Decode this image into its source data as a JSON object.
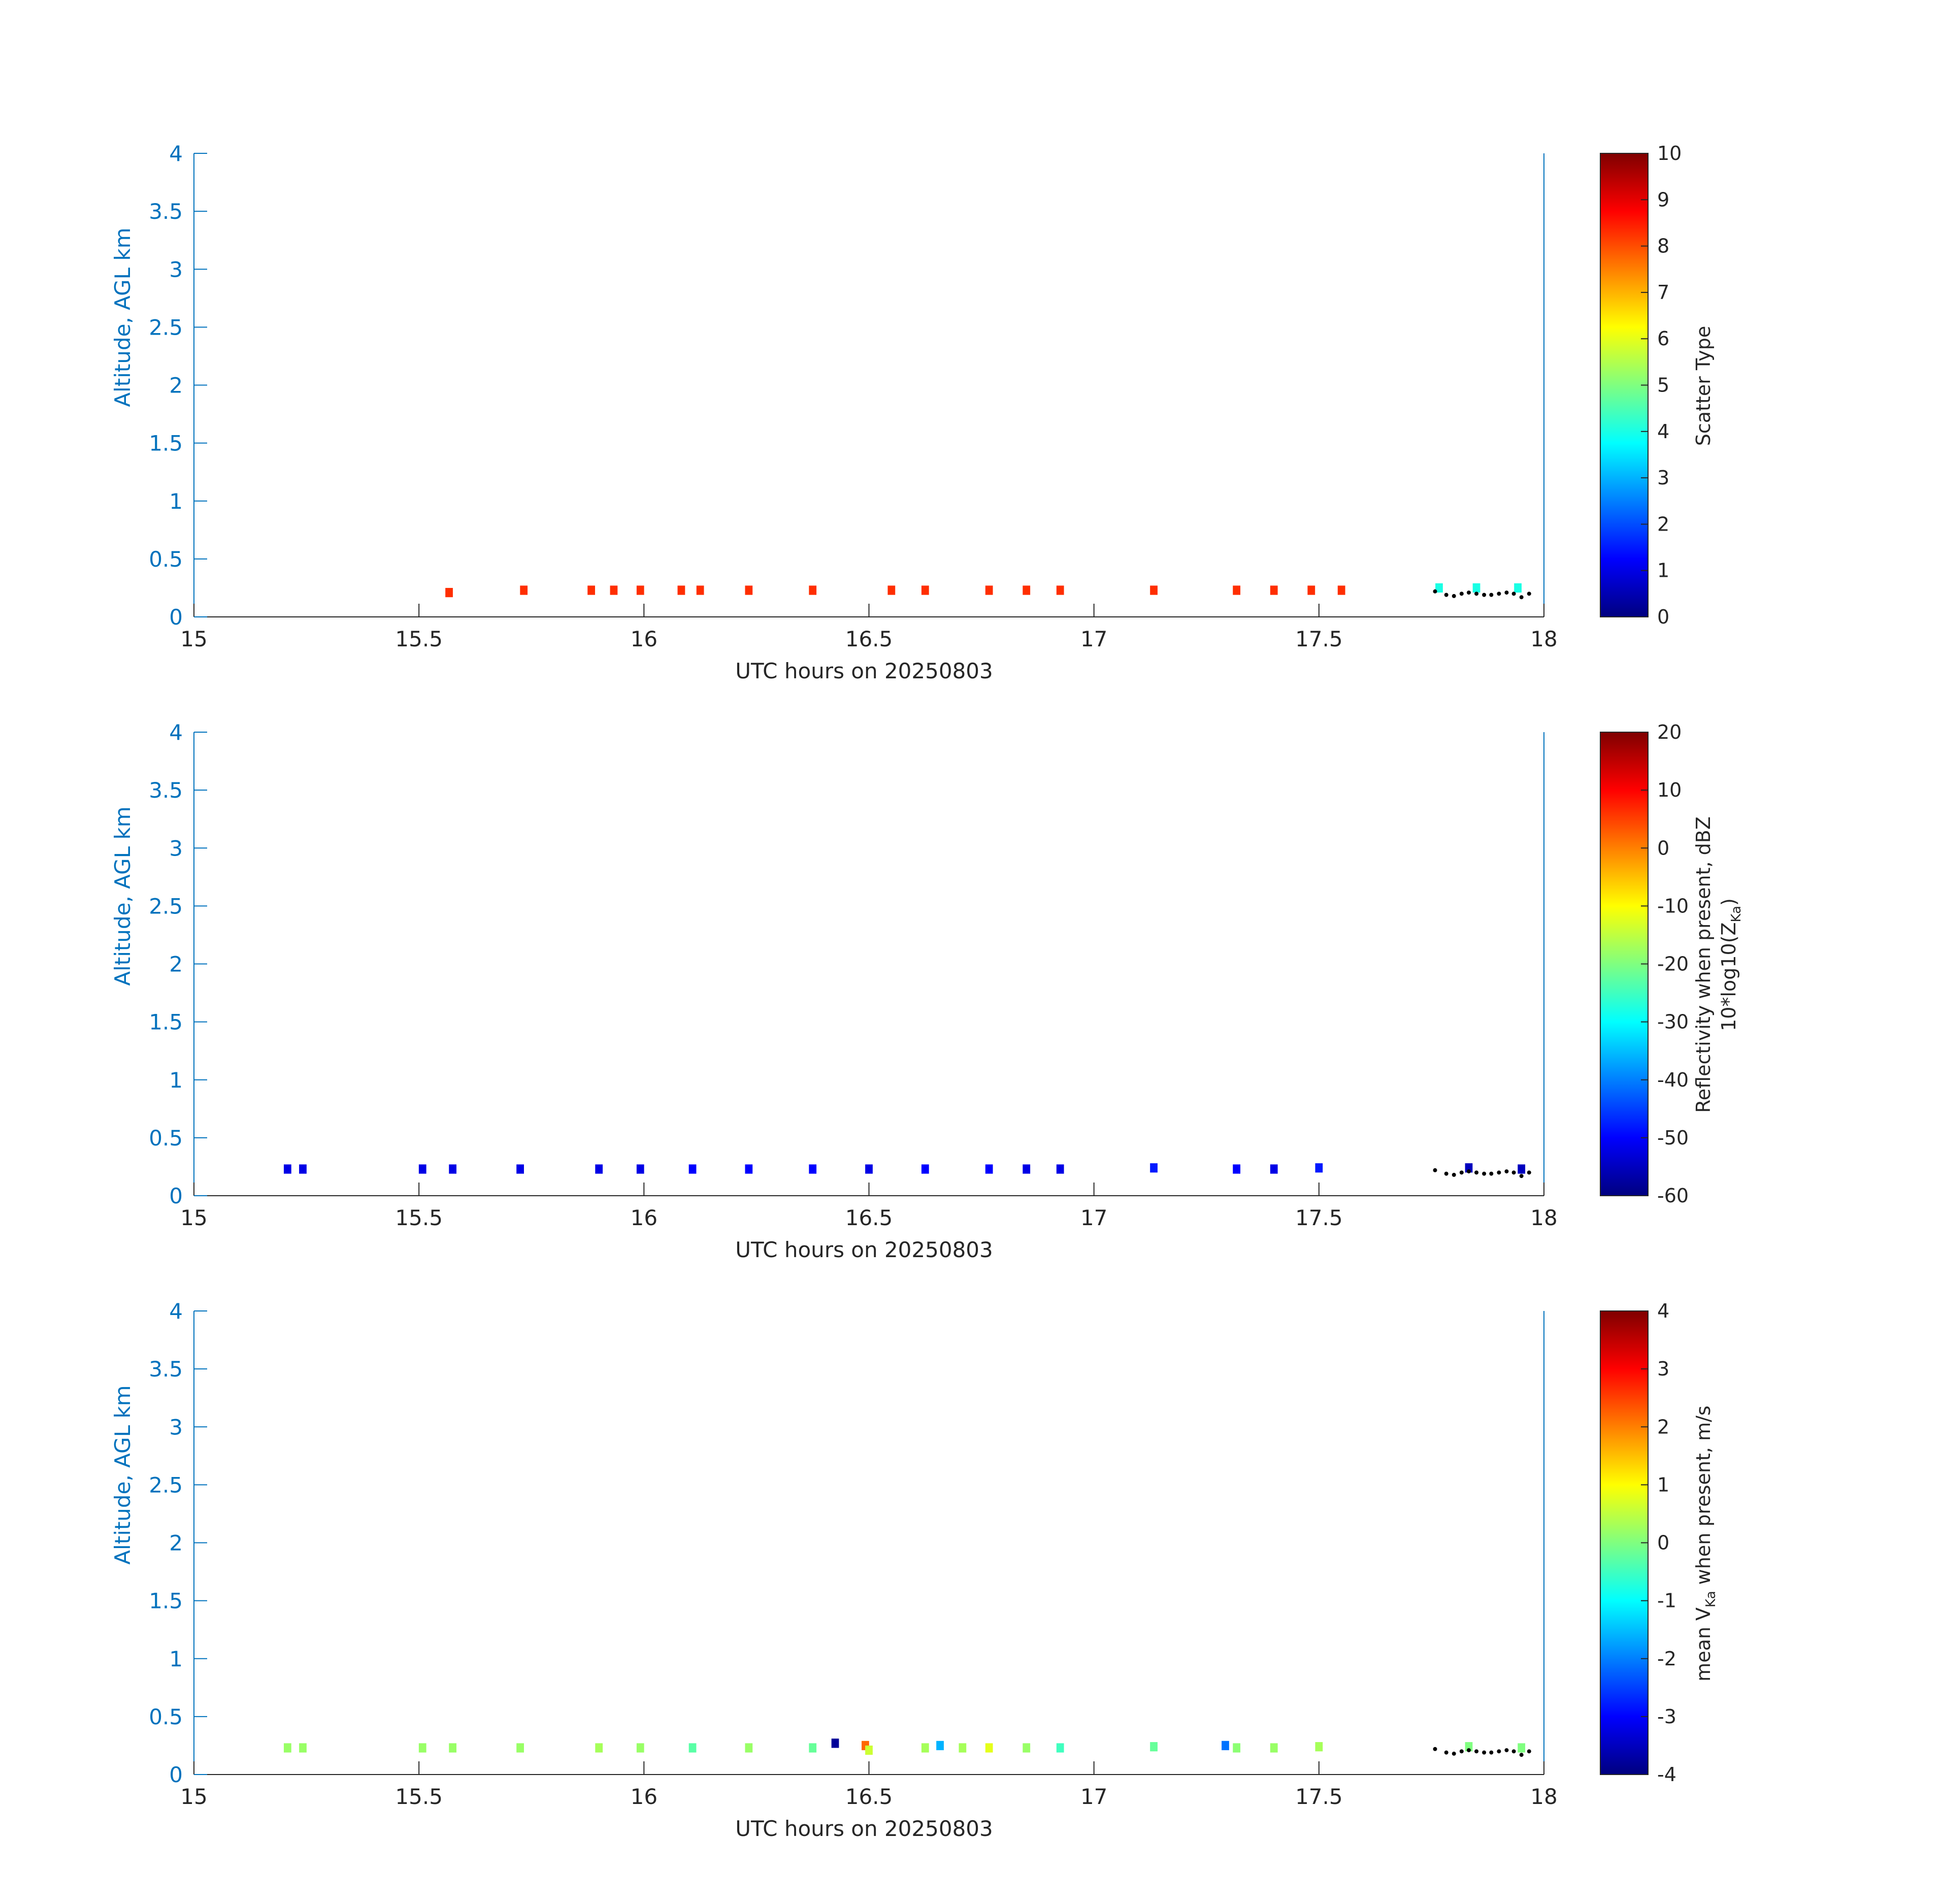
{
  "figure": {
    "xlabel": "UTC hours on 20250803",
    "ylabel": "Altitude, AGL km",
    "xlim": [
      15,
      18
    ],
    "ylim": [
      0,
      4
    ],
    "xticks": [
      "15",
      "15.5",
      "16",
      "16.5",
      "17",
      "17.5",
      "18"
    ],
    "yticks": [
      "0",
      "0.5",
      "1",
      "1.5",
      "2",
      "2.5",
      "3",
      "3.5",
      "4"
    ],
    "colors": {
      "ylabel": "#0072bd",
      "axis": "#262626",
      "marker": "#000000"
    },
    "colormap": "jet"
  },
  "chart_data": [
    {
      "type": "heatmap",
      "xlabel": "UTC hours on 20250803",
      "ylabel": "Altitude, AGL km",
      "xlim": [
        15,
        18
      ],
      "ylim": [
        0,
        4
      ],
      "colorbar": {
        "label": "Scatter Type",
        "range": [
          0,
          10
        ],
        "ticks": [
          "0",
          "1",
          "2",
          "3",
          "4",
          "5",
          "6",
          "7",
          "8",
          "9",
          "10"
        ]
      },
      "bins": [
        {
          "x": 15.567,
          "y": 0.21,
          "v": 8.3
        },
        {
          "x": 15.733,
          "y": 0.23,
          "v": 8.3
        },
        {
          "x": 15.883,
          "y": 0.23,
          "v": 8.3
        },
        {
          "x": 15.933,
          "y": 0.23,
          "v": 8.3
        },
        {
          "x": 15.992,
          "y": 0.23,
          "v": 8.3
        },
        {
          "x": 16.083,
          "y": 0.23,
          "v": 8.3
        },
        {
          "x": 16.125,
          "y": 0.23,
          "v": 8.3
        },
        {
          "x": 16.233,
          "y": 0.23,
          "v": 8.3
        },
        {
          "x": 16.375,
          "y": 0.23,
          "v": 8.3
        },
        {
          "x": 16.55,
          "y": 0.23,
          "v": 8.3
        },
        {
          "x": 16.625,
          "y": 0.23,
          "v": 8.3
        },
        {
          "x": 16.767,
          "y": 0.23,
          "v": 8.3
        },
        {
          "x": 16.85,
          "y": 0.23,
          "v": 8.3
        },
        {
          "x": 16.925,
          "y": 0.23,
          "v": 8.3
        },
        {
          "x": 17.133,
          "y": 0.23,
          "v": 8.3
        },
        {
          "x": 17.317,
          "y": 0.23,
          "v": 8.3
        },
        {
          "x": 17.4,
          "y": 0.23,
          "v": 8.3
        },
        {
          "x": 17.483,
          "y": 0.23,
          "v": 8.3
        },
        {
          "x": 17.55,
          "y": 0.23,
          "v": 8.3
        },
        {
          "x": 17.767,
          "y": 0.25,
          "v": 4.0
        },
        {
          "x": 17.85,
          "y": 0.25,
          "v": 4.0
        },
        {
          "x": 17.942,
          "y": 0.25,
          "v": 4.0
        }
      ],
      "markers": [
        {
          "x": 17.758,
          "y": 0.22
        },
        {
          "x": 17.783,
          "y": 0.19
        },
        {
          "x": 17.8,
          "y": 0.18
        },
        {
          "x": 17.817,
          "y": 0.2
        },
        {
          "x": 17.833,
          "y": 0.21
        },
        {
          "x": 17.85,
          "y": 0.2
        },
        {
          "x": 17.867,
          "y": 0.19
        },
        {
          "x": 17.883,
          "y": 0.19
        },
        {
          "x": 17.9,
          "y": 0.2
        },
        {
          "x": 17.917,
          "y": 0.21
        },
        {
          "x": 17.933,
          "y": 0.2
        },
        {
          "x": 17.95,
          "y": 0.17
        },
        {
          "x": 17.967,
          "y": 0.2
        }
      ]
    },
    {
      "type": "heatmap",
      "xlabel": "UTC hours on 20250803",
      "ylabel": "Altitude, AGL km",
      "xlim": [
        15,
        18
      ],
      "ylim": [
        0,
        4
      ],
      "colorbar": {
        "label": "Reflectivity when present, dBZ",
        "label2": "10*log10(Z",
        "label2_sub": "Ka",
        "label2_end": ")",
        "range": [
          -60,
          20
        ],
        "ticks": [
          "-60",
          "-50",
          "-40",
          "-30",
          "-20",
          "-10",
          "0",
          "10",
          "20"
        ]
      },
      "bins": [
        {
          "x": 15.208,
          "y": 0.23,
          "v": -52
        },
        {
          "x": 15.242,
          "y": 0.23,
          "v": -52
        },
        {
          "x": 15.508,
          "y": 0.23,
          "v": -52
        },
        {
          "x": 15.575,
          "y": 0.23,
          "v": -52
        },
        {
          "x": 15.725,
          "y": 0.23,
          "v": -52
        },
        {
          "x": 15.9,
          "y": 0.23,
          "v": -52
        },
        {
          "x": 15.992,
          "y": 0.23,
          "v": -52
        },
        {
          "x": 16.108,
          "y": 0.23,
          "v": -50
        },
        {
          "x": 16.233,
          "y": 0.23,
          "v": -50
        },
        {
          "x": 16.375,
          "y": 0.23,
          "v": -50
        },
        {
          "x": 16.5,
          "y": 0.23,
          "v": -52
        },
        {
          "x": 16.625,
          "y": 0.23,
          "v": -50
        },
        {
          "x": 16.767,
          "y": 0.23,
          "v": -50
        },
        {
          "x": 16.85,
          "y": 0.23,
          "v": -52
        },
        {
          "x": 16.925,
          "y": 0.23,
          "v": -52
        },
        {
          "x": 17.133,
          "y": 0.24,
          "v": -48
        },
        {
          "x": 17.317,
          "y": 0.23,
          "v": -50
        },
        {
          "x": 17.4,
          "y": 0.23,
          "v": -52
        },
        {
          "x": 17.5,
          "y": 0.24,
          "v": -48
        },
        {
          "x": 17.833,
          "y": 0.24,
          "v": -55
        },
        {
          "x": 17.95,
          "y": 0.23,
          "v": -55
        }
      ],
      "markers": [
        {
          "x": 17.758,
          "y": 0.22
        },
        {
          "x": 17.783,
          "y": 0.19
        },
        {
          "x": 17.8,
          "y": 0.18
        },
        {
          "x": 17.817,
          "y": 0.2
        },
        {
          "x": 17.833,
          "y": 0.21
        },
        {
          "x": 17.85,
          "y": 0.2
        },
        {
          "x": 17.867,
          "y": 0.19
        },
        {
          "x": 17.883,
          "y": 0.19
        },
        {
          "x": 17.9,
          "y": 0.2
        },
        {
          "x": 17.917,
          "y": 0.21
        },
        {
          "x": 17.933,
          "y": 0.2
        },
        {
          "x": 17.95,
          "y": 0.17
        },
        {
          "x": 17.967,
          "y": 0.2
        }
      ]
    },
    {
      "type": "heatmap",
      "xlabel": "UTC hours on 20250803",
      "ylabel": "Altitude, AGL km",
      "xlim": [
        15,
        18
      ],
      "ylim": [
        0,
        4
      ],
      "colorbar": {
        "label_pre": "mean V",
        "label_sub": "Ka",
        "label_post": " when present, m/s",
        "range": [
          -4,
          4
        ],
        "ticks": [
          "-4",
          "-3",
          "-2",
          "-1",
          "0",
          "1",
          "2",
          "3",
          "4"
        ]
      },
      "bins": [
        {
          "x": 15.208,
          "y": 0.23,
          "v": 0.2
        },
        {
          "x": 15.242,
          "y": 0.23,
          "v": 0.2
        },
        {
          "x": 15.508,
          "y": 0.23,
          "v": 0.2
        },
        {
          "x": 15.575,
          "y": 0.23,
          "v": 0.2
        },
        {
          "x": 15.725,
          "y": 0.23,
          "v": 0.2
        },
        {
          "x": 15.9,
          "y": 0.23,
          "v": 0.3
        },
        {
          "x": 15.992,
          "y": 0.23,
          "v": 0.2
        },
        {
          "x": 16.108,
          "y": 0.23,
          "v": -0.3
        },
        {
          "x": 16.233,
          "y": 0.23,
          "v": 0.2
        },
        {
          "x": 16.375,
          "y": 0.23,
          "v": -0.2
        },
        {
          "x": 16.425,
          "y": 0.27,
          "v": -3.8
        },
        {
          "x": 16.492,
          "y": 0.25,
          "v": 2.2
        },
        {
          "x": 16.5,
          "y": 0.21,
          "v": 0.6
        },
        {
          "x": 16.625,
          "y": 0.23,
          "v": 0.3
        },
        {
          "x": 16.658,
          "y": 0.25,
          "v": -1.6
        },
        {
          "x": 16.708,
          "y": 0.23,
          "v": 0.3
        },
        {
          "x": 16.767,
          "y": 0.23,
          "v": 0.8
        },
        {
          "x": 16.85,
          "y": 0.23,
          "v": 0.2
        },
        {
          "x": 16.925,
          "y": 0.23,
          "v": -0.5
        },
        {
          "x": 17.133,
          "y": 0.24,
          "v": -0.2
        },
        {
          "x": 17.292,
          "y": 0.25,
          "v": -2.1
        },
        {
          "x": 17.317,
          "y": 0.23,
          "v": 0.1
        },
        {
          "x": 17.4,
          "y": 0.23,
          "v": 0.2
        },
        {
          "x": 17.5,
          "y": 0.24,
          "v": 0.3
        },
        {
          "x": 17.833,
          "y": 0.24,
          "v": 0.0
        },
        {
          "x": 17.95,
          "y": 0.23,
          "v": 0.0
        }
      ],
      "markers": [
        {
          "x": 17.758,
          "y": 0.22
        },
        {
          "x": 17.783,
          "y": 0.19
        },
        {
          "x": 17.8,
          "y": 0.18
        },
        {
          "x": 17.817,
          "y": 0.2
        },
        {
          "x": 17.833,
          "y": 0.21
        },
        {
          "x": 17.85,
          "y": 0.2
        },
        {
          "x": 17.867,
          "y": 0.19
        },
        {
          "x": 17.883,
          "y": 0.19
        },
        {
          "x": 17.9,
          "y": 0.2
        },
        {
          "x": 17.917,
          "y": 0.21
        },
        {
          "x": 17.933,
          "y": 0.2
        },
        {
          "x": 17.95,
          "y": 0.17
        },
        {
          "x": 17.967,
          "y": 0.2
        }
      ]
    }
  ]
}
